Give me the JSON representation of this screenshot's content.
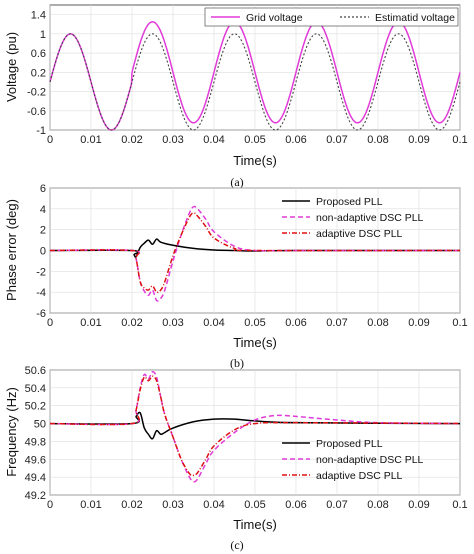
{
  "chart_data": [
    {
      "type": "line",
      "panel": "(a)",
      "xlabel": "Time(s)",
      "ylabel": "Voltage (pu)",
      "xlim": [
        0,
        0.1
      ],
      "ylim": [
        -1,
        1.6
      ],
      "xticks": [
        "0",
        "0.01",
        "0.02",
        "0.03",
        "0.04",
        "0.05",
        "0.06",
        "0.07",
        "0.08",
        "0.09",
        "0.1"
      ],
      "yticks": [
        "-1",
        "-0.6",
        "-0.2",
        "0.2",
        "0.6",
        "1",
        "1.4"
      ],
      "ytick_values": [
        -1,
        -0.6,
        -0.2,
        0.2,
        0.6,
        1,
        1.4
      ],
      "legend_position": "top-right",
      "grid": true,
      "series": [
        {
          "name": "Grid voltage",
          "color": "#e03ad8",
          "style": "solid",
          "description_values": {
            "before_0.02s": {
              "amplitude": 1.0,
              "offset": 0
            },
            "after_0.02s": {
              "amplitude": 1.05,
              "offset": 0.2,
              "frequency_hz": 50
            }
          }
        },
        {
          "name": "Estimatid voltage",
          "color": "#444444",
          "style": "dotted",
          "description_values": {
            "before_0.02s": {
              "amplitude": 1.0,
              "offset": 0
            },
            "after_0.02s": {
              "amplitude": 1.0,
              "offset": 0.0,
              "frequency_hz": 50
            }
          }
        }
      ]
    },
    {
      "type": "line",
      "panel": "(b)",
      "xlabel": "Time(s)",
      "ylabel": "Phase error (deg)",
      "xlim": [
        0,
        0.1
      ],
      "ylim": [
        -6,
        6
      ],
      "xticks": [
        "0",
        "0.01",
        "0.02",
        "0.03",
        "0.04",
        "0.05",
        "0.06",
        "0.07",
        "0.08",
        "0.09",
        "0.1"
      ],
      "yticks": [
        "-6",
        "-4",
        "-2",
        "0",
        "2",
        "4",
        "6"
      ],
      "ytick_values": [
        -6,
        -4,
        -2,
        0,
        2,
        4,
        6
      ],
      "legend_position": "top-right",
      "grid": true,
      "series": [
        {
          "name": "Proposed PLL",
          "color": "#000000",
          "style": "solid",
          "x": [
            0,
            0.02,
            0.0205,
            0.021,
            0.022,
            0.023,
            0.024,
            0.025,
            0.026,
            0.027,
            0.03,
            0.035,
            0.04,
            0.045,
            0.05,
            0.06,
            0.1
          ],
          "y": [
            0,
            0,
            -0.4,
            -0.6,
            0.3,
            0.7,
            1.0,
            0.6,
            1.1,
            0.8,
            0.5,
            0.2,
            0.05,
            0,
            -0.05,
            0,
            0
          ]
        },
        {
          "name": "non-adaptive DSC PLL",
          "color": "#e03ad8",
          "style": "dashed",
          "x": [
            0,
            0.02,
            0.021,
            0.022,
            0.023,
            0.024,
            0.025,
            0.026,
            0.027,
            0.028,
            0.03,
            0.032,
            0.034,
            0.035,
            0.036,
            0.038,
            0.04,
            0.045,
            0.05,
            0.06,
            0.1
          ],
          "y": [
            0,
            0,
            -0.8,
            -3.0,
            -3.9,
            -4.3,
            -3.8,
            -4.8,
            -4.6,
            -3.8,
            -1.0,
            1.5,
            3.6,
            4.2,
            4.0,
            3.0,
            1.8,
            0.4,
            0,
            0,
            0
          ]
        },
        {
          "name": "adaptive DSC PLL",
          "color": "#dd1111",
          "style": "dashdot",
          "x": [
            0,
            0.02,
            0.021,
            0.022,
            0.023,
            0.024,
            0.025,
            0.026,
            0.027,
            0.028,
            0.03,
            0.032,
            0.034,
            0.035,
            0.036,
            0.038,
            0.04,
            0.045,
            0.05,
            0.1
          ],
          "y": [
            0,
            0,
            -0.8,
            -3.0,
            -3.6,
            -3.8,
            -3.4,
            -4.0,
            -3.8,
            -3.0,
            -0.5,
            1.5,
            3.2,
            3.6,
            3.3,
            2.3,
            1.2,
            0.2,
            0,
            0
          ]
        }
      ]
    },
    {
      "type": "line",
      "panel": "(c)",
      "xlabel": "Time(s)",
      "ylabel": "Frequency (Hz)",
      "xlim": [
        0,
        0.1
      ],
      "ylim": [
        49.2,
        50.6
      ],
      "xticks": [
        "0",
        "0.01",
        "0.02",
        "0.03",
        "0.04",
        "0.05",
        "0.06",
        "0.07",
        "0.08",
        "0.09",
        "0.1"
      ],
      "yticks": [
        "49.2",
        "49.4",
        "49.6",
        "49.8",
        "50",
        "50.2",
        "50.4",
        "50.6"
      ],
      "ytick_values": [
        49.2,
        49.4,
        49.6,
        49.8,
        50,
        50.2,
        50.4,
        50.6
      ],
      "legend_position": "bottom-right",
      "grid": true,
      "series": [
        {
          "name": "Proposed PLL",
          "color": "#000000",
          "style": "solid",
          "x": [
            0,
            0.02,
            0.021,
            0.022,
            0.023,
            0.024,
            0.025,
            0.026,
            0.027,
            0.028,
            0.03,
            0.035,
            0.04,
            0.045,
            0.05,
            0.06,
            0.1
          ],
          "y": [
            50,
            50,
            50.08,
            50.12,
            49.95,
            49.88,
            49.83,
            49.92,
            49.88,
            49.9,
            49.95,
            50.02,
            50.05,
            50.05,
            50.03,
            50.01,
            50
          ]
        },
        {
          "name": "non-adaptive DSC PLL",
          "color": "#e03ad8",
          "style": "dashed",
          "x": [
            0,
            0.02,
            0.021,
            0.022,
            0.023,
            0.024,
            0.025,
            0.026,
            0.027,
            0.028,
            0.03,
            0.032,
            0.034,
            0.035,
            0.036,
            0.038,
            0.04,
            0.045,
            0.05,
            0.055,
            0.06,
            0.07,
            0.08,
            0.1
          ],
          "y": [
            50,
            50,
            50.15,
            50.4,
            50.55,
            50.5,
            50.58,
            50.52,
            50.3,
            50.1,
            49.85,
            49.6,
            49.4,
            49.35,
            49.38,
            49.55,
            49.7,
            49.9,
            50.04,
            50.09,
            50.08,
            50.04,
            50.01,
            50
          ]
        },
        {
          "name": "adaptive DSC PLL",
          "color": "#dd1111",
          "style": "dashdot",
          "x": [
            0,
            0.02,
            0.021,
            0.022,
            0.023,
            0.024,
            0.025,
            0.026,
            0.027,
            0.028,
            0.03,
            0.032,
            0.034,
            0.035,
            0.036,
            0.038,
            0.04,
            0.045,
            0.05,
            0.06,
            0.1
          ],
          "y": [
            50,
            50,
            50.15,
            50.38,
            50.52,
            50.48,
            50.53,
            50.48,
            50.3,
            50.1,
            49.85,
            49.6,
            49.44,
            49.42,
            49.45,
            49.6,
            49.75,
            49.93,
            50.0,
            50.01,
            50
          ]
        }
      ]
    }
  ]
}
